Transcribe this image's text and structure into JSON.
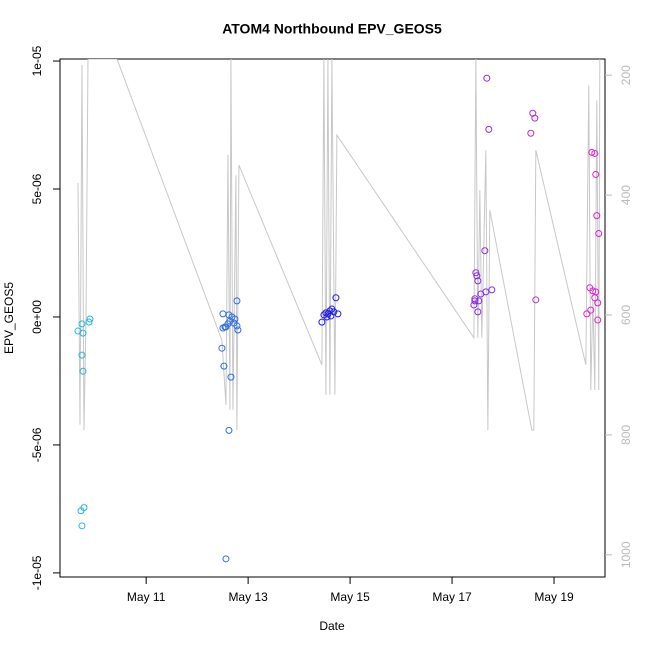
{
  "chart_data": {
    "type": "scatter",
    "title": "ATOM4 Northbound EPV_GEOS5",
    "x_label": "Date",
    "y_label": "EPV_GEOS5",
    "xlim": [
      9.31,
      20.0
    ],
    "xticks": [
      {
        "value": 11,
        "label": "May 11"
      },
      {
        "value": 13,
        "label": "May 13"
      },
      {
        "value": 15,
        "label": "May 15"
      },
      {
        "value": 17,
        "label": "May 17"
      },
      {
        "value": 19,
        "label": "May 19"
      }
    ],
    "ylim": [
      -1.016e-05,
      1.008e-05
    ],
    "yticks": [
      {
        "value": -1e-05,
        "label": "-1e-05"
      },
      {
        "value": -5e-06,
        "label": "-5e-06"
      },
      {
        "value": 0,
        "label": "0e+00"
      },
      {
        "value": 5e-06,
        "label": "5e-06"
      },
      {
        "value": 1e-05,
        "label": "1e-05"
      }
    ],
    "y2lim": [
      1037,
      173
    ],
    "y2ticks": [
      200,
      400,
      600,
      800,
      1000
    ],
    "y2_color": "#bbbbbb",
    "series": [
      {
        "axis": "y2",
        "mode": "line",
        "color": "#c8c8c8",
        "x": [
          9.663,
          9.702,
          9.741,
          9.78,
          9.82,
          9.859,
          10.428,
          12.486,
          12.565,
          12.604,
          12.643,
          12.663,
          12.702,
          12.761,
          12.78,
          12.82,
          14.447,
          14.486,
          14.526,
          14.565,
          14.604,
          14.643,
          14.702,
          14.741,
          17.428,
          17.467,
          17.506,
          17.545,
          17.584,
          17.663,
          17.702,
          17.741,
          18.565,
          18.604,
          18.643,
          19.624,
          19.682,
          19.721,
          19.761,
          19.8,
          19.839,
          19.878,
          19.898
        ],
        "values": [
          380,
          783,
          183,
          792,
          608,
          173,
          173,
          642,
          750,
          333,
          758,
          173,
          758,
          367,
          792,
          350,
          683,
          173,
          733,
          173,
          733,
          173,
          733,
          300,
          638,
          173,
          638,
          392,
          638,
          325,
          792,
          425,
          792,
          792,
          325,
          683,
          217,
          725,
          575,
          725,
          242,
          725,
          173
        ]
      },
      {
        "mode": "points",
        "color": "#29b5e8",
        "x": [
          9.663,
          9.741,
          9.761,
          9.741,
          9.761,
          9.898,
          9.879,
          9.722,
          9.78,
          9.741
        ],
        "values": [
          -5.5e-07,
          -2.7e-07,
          -6.3e-07,
          -1.49e-06,
          -2.12e-06,
          -8e-08,
          -2e-07,
          -7.57e-06,
          -7.45e-06,
          -8.16e-06
        ]
      },
      {
        "mode": "points",
        "color": "#2f6fe0",
        "x": [
          12.486,
          12.526,
          12.565,
          12.506,
          12.506,
          12.545,
          12.604,
          12.624,
          12.643,
          12.663,
          12.683,
          12.722,
          12.741,
          12.781,
          12.781,
          12.8,
          12.624,
          12.565
        ],
        "values": [
          -1.22e-06,
          -1.92e-06,
          -9.45e-06,
          1.2e-07,
          -4.3e-07,
          -3.9e-07,
          -2.7e-07,
          8e-08,
          -1.6e-07,
          -2.35e-06,
          0,
          -2.4e-07,
          -8e-08,
          6.3e-07,
          -3.5e-07,
          -5.1e-07,
          -4.43e-06,
          -3.9e-07
        ]
      },
      {
        "mode": "points",
        "color": "#2020e0",
        "x": [
          14.447,
          14.486,
          14.526,
          14.565,
          14.604,
          14.643,
          14.682,
          14.722,
          14.761,
          14.545,
          14.624
        ],
        "values": [
          -2e-07,
          8e-08,
          1.6e-07,
          1.2e-07,
          2.4e-07,
          3.1e-07,
          2e-07,
          7.5e-07,
          1.2e-07,
          0,
          4e-08
        ]
      },
      {
        "mode": "points",
        "color": "#8a2be2",
        "x": [
          17.428,
          17.447,
          17.467,
          17.486,
          17.506,
          17.506,
          17.525,
          17.565,
          17.643,
          17.663,
          17.682,
          17.721,
          17.78,
          17.447
        ],
        "values": [
          4.7e-07,
          7.1e-07,
          1.73e-06,
          1.61e-06,
          1.41e-06,
          2e-07,
          6.3e-07,
          9e-07,
          2.59e-06,
          9.8e-07,
          9.33e-06,
          7.33e-06,
          1.06e-06,
          6.3e-07
        ]
      },
      {
        "mode": "points",
        "color": "#b52cd0",
        "x": [
          18.545,
          18.584,
          18.624,
          18.643
        ],
        "values": [
          7.18e-06,
          7.96e-06,
          7.77e-06,
          6.7e-07
        ]
      },
      {
        "mode": "points",
        "color": "#e020d0",
        "x": [
          19.643,
          19.702,
          19.721,
          19.741,
          19.8,
          19.761,
          19.8,
          19.819,
          19.839,
          19.819,
          19.858,
          19.878,
          19.858
        ],
        "values": [
          1.2e-07,
          1.14e-06,
          2.7e-07,
          6.43e-06,
          6.39e-06,
          1.02e-06,
          7.5e-07,
          5.57e-06,
          3.96e-06,
          9.8e-07,
          5.5e-07,
          3.26e-06,
          -1.2e-07
        ]
      }
    ]
  }
}
